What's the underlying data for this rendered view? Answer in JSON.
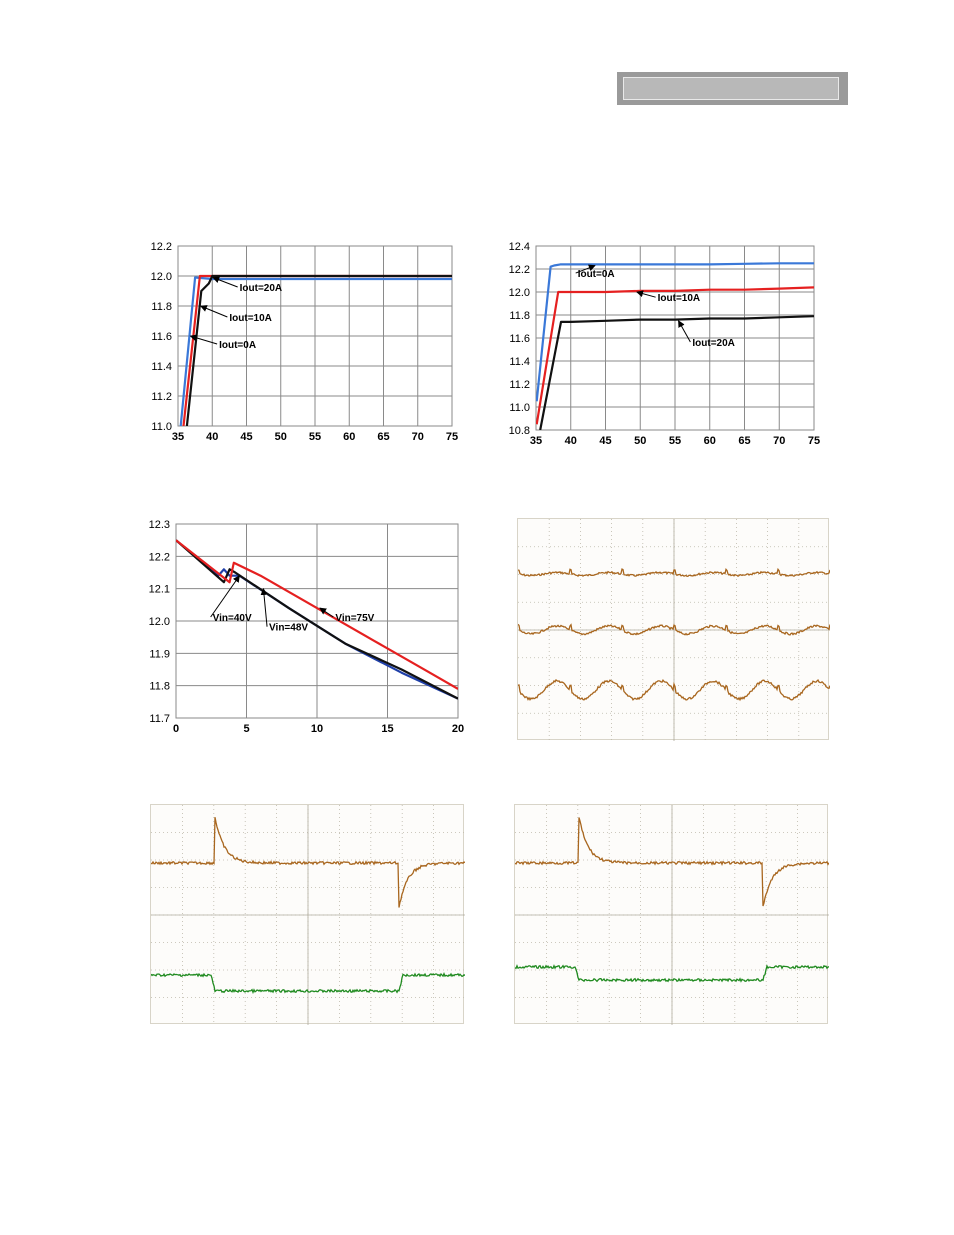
{
  "colors": {
    "blue": "#3a78d8",
    "red": "#e52020",
    "black": "#111111",
    "navy": "#1f3fa8",
    "scope_orange": "#a8661e",
    "scope_green": "#1f8a1f",
    "grid": "#8a8a8a",
    "header_bar": "#9a9a9a"
  },
  "chart_data": [
    {
      "type": "line",
      "xlim": [
        35,
        75
      ],
      "ylim": [
        11.0,
        12.2
      ],
      "x_ticks": [
        "35",
        "40",
        "45",
        "50",
        "55",
        "60",
        "65",
        "70",
        "75"
      ],
      "y_ticks": [
        "11.0",
        "11.2",
        "11.4",
        "11.6",
        "11.8",
        "12.0",
        "12.2"
      ],
      "grid": true,
      "series": [
        {
          "name": "Iout=0A",
          "color_key": "blue",
          "x": [
            35.4,
            37.5,
            40,
            45,
            50,
            55,
            60,
            65,
            70,
            75
          ],
          "y": [
            11.0,
            11.99,
            11.98,
            11.98,
            11.98,
            11.98,
            11.98,
            11.98,
            11.98,
            11.98
          ]
        },
        {
          "name": "Iout=10A",
          "color_key": "red",
          "x": [
            35.8,
            38.2,
            40,
            45,
            50,
            55,
            60,
            65,
            70,
            75
          ],
          "y": [
            11.0,
            12.0,
            12.0,
            12.0,
            12.0,
            12.0,
            12.0,
            12.0,
            12.0,
            12.0
          ]
        },
        {
          "name": "Iout=20A",
          "color_key": "black",
          "x": [
            36.3,
            38.4,
            39.5,
            40,
            45,
            50,
            55,
            60,
            65,
            70,
            75
          ],
          "y": [
            11.0,
            11.9,
            11.95,
            12.0,
            12.0,
            12.0,
            12.0,
            12.0,
            12.0,
            12.0,
            12.0
          ]
        }
      ],
      "annotations": [
        {
          "text": "Iout=20A",
          "x": 44,
          "y": 11.9,
          "ax": 40.1,
          "ay": 11.99
        },
        {
          "text": "Iout=10A",
          "x": 42.5,
          "y": 11.7,
          "ax": 38.3,
          "ay": 11.8
        },
        {
          "text": "Iout=0A",
          "x": 41,
          "y": 11.52,
          "ax": 36.8,
          "ay": 11.6
        }
      ]
    },
    {
      "type": "line",
      "xlim": [
        35,
        75
      ],
      "ylim": [
        10.8,
        12.4
      ],
      "x_ticks": [
        "35",
        "40",
        "45",
        "50",
        "55",
        "60",
        "65",
        "70",
        "75"
      ],
      "y_ticks": [
        "10.8",
        "11.0",
        "11.2",
        "11.4",
        "11.6",
        "11.8",
        "12.0",
        "12.2",
        "12.4"
      ],
      "grid": true,
      "series": [
        {
          "name": "Iout=0A",
          "color_key": "blue",
          "x": [
            35.1,
            37.1,
            37.6,
            38.5,
            45,
            50,
            55,
            60,
            65,
            70,
            75
          ],
          "y": [
            11.05,
            12.22,
            12.23,
            12.24,
            12.24,
            12.24,
            12.24,
            12.24,
            12.245,
            12.25,
            12.25
          ]
        },
        {
          "name": "Iout=10A",
          "color_key": "red",
          "x": [
            35.1,
            38.2,
            40,
            45,
            50,
            55,
            60,
            65,
            70,
            75
          ],
          "y": [
            10.85,
            12.0,
            12.0,
            12.0,
            12.01,
            12.01,
            12.02,
            12.02,
            12.03,
            12.04
          ]
        },
        {
          "name": "Iout=20A",
          "color_key": "black",
          "x": [
            35.6,
            38.6,
            40,
            45,
            50,
            55,
            60,
            65,
            70,
            75
          ],
          "y": [
            10.8,
            11.74,
            11.74,
            11.75,
            11.76,
            11.76,
            11.77,
            11.77,
            11.78,
            11.79
          ]
        }
      ],
      "annotations": [
        {
          "text": "Iout=0A",
          "x": 41,
          "y": 12.13,
          "ax": 43.5,
          "ay": 12.23
        },
        {
          "text": "Iout=10A",
          "x": 52.5,
          "y": 11.92,
          "ax": 49.5,
          "ay": 12.0
        },
        {
          "text": "Iout=20A",
          "x": 57.5,
          "y": 11.53,
          "ax": 55.5,
          "ay": 11.75
        }
      ]
    },
    {
      "type": "line",
      "xlim": [
        0,
        20
      ],
      "ylim": [
        11.7,
        12.3
      ],
      "x_ticks": [
        "0",
        "5",
        "10",
        "15",
        "20"
      ],
      "y_ticks": [
        "11.7",
        "11.8",
        "11.9",
        "12.0",
        "12.1",
        "12.2",
        "12.3"
      ],
      "grid": true,
      "series": [
        {
          "name": "Vin=40V",
          "color_key": "navy",
          "x": [
            0,
            3,
            3.4,
            3.8,
            4.5,
            8,
            12,
            16,
            20
          ],
          "y": [
            12.25,
            12.14,
            12.16,
            12.14,
            12.14,
            12.04,
            11.93,
            11.84,
            11.76
          ]
        },
        {
          "name": "Vin=48V",
          "color_key": "black",
          "x": [
            0,
            3.4,
            3.8,
            4.2,
            8,
            12,
            16,
            20
          ],
          "y": [
            12.25,
            12.12,
            12.16,
            12.15,
            12.04,
            11.93,
            11.85,
            11.76
          ]
        },
        {
          "name": "Vin=75V",
          "color_key": "red",
          "x": [
            0,
            3.8,
            4.1,
            6,
            10,
            14,
            18,
            20
          ],
          "y": [
            12.25,
            12.12,
            12.18,
            12.14,
            12.04,
            11.94,
            11.84,
            11.79
          ]
        }
      ],
      "annotations": [
        {
          "text": "Vin=40V",
          "x": 2.6,
          "y": 12.0,
          "ax": 4.5,
          "ay": 12.14
        },
        {
          "text": "Vin=48V",
          "x": 6.6,
          "y": 11.97,
          "ax": 6.2,
          "ay": 12.1
        },
        {
          "text": "Vin=75V",
          "x": 11.3,
          "y": 12.0,
          "ax": 10.2,
          "ay": 12.04
        }
      ]
    }
  ]
}
